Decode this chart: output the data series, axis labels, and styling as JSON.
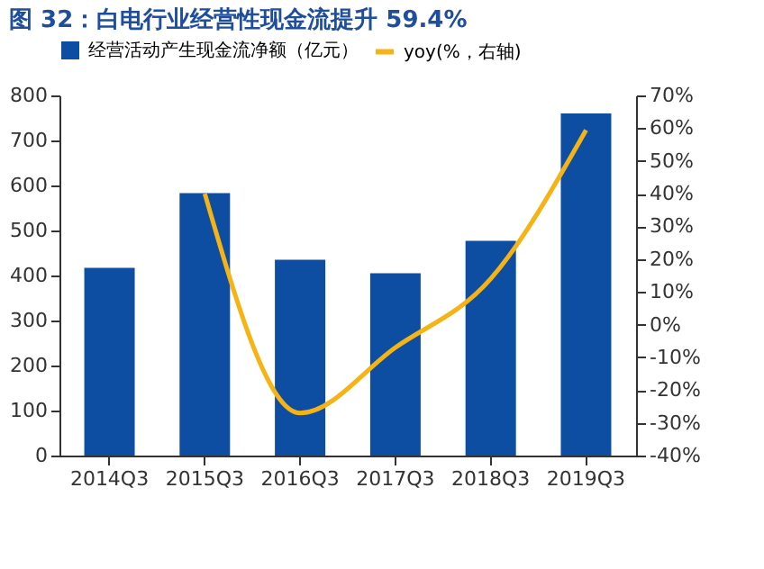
{
  "chart_data": {
    "type": "bar",
    "title": "图 32：白电行业经营性现金流提升 59.4%",
    "categories": [
      "2014Q3",
      "2015Q3",
      "2016Q3",
      "2017Q3",
      "2018Q3",
      "2019Q3"
    ],
    "series": [
      {
        "name": "经营活动产生现金流净额（亿元）",
        "color": "#0d4ea3",
        "values": [
          417,
          583,
          435,
          405,
          477,
          760
        ]
      },
      {
        "name": "yoy(%，右轴)",
        "type": "line",
        "axis": "y2",
        "color": "#f5b315",
        "values": [
          null,
          40,
          -27,
          -7,
          14,
          59.4
        ]
      }
    ],
    "ylim": [
      0,
      800
    ],
    "yticks": [
      0,
      100,
      200,
      300,
      400,
      500,
      600,
      700,
      800
    ],
    "y2lim": [
      -40,
      70
    ],
    "y2ticks": [
      {
        "value": -40,
        "label": "-40%"
      },
      {
        "value": -30,
        "label": "-30%"
      },
      {
        "value": -20,
        "label": "-20%"
      },
      {
        "value": -10,
        "label": "-10%"
      },
      {
        "value": 0,
        "label": "0%"
      },
      {
        "value": 10,
        "label": "10%"
      },
      {
        "value": 20,
        "label": "20%"
      },
      {
        "value": 30,
        "label": "30%"
      },
      {
        "value": 40,
        "label": "40%"
      },
      {
        "value": 50,
        "label": "50%"
      },
      {
        "value": 60,
        "label": "60%"
      },
      {
        "value": 70,
        "label": "70%"
      }
    ],
    "legend": "top",
    "grid": false
  }
}
